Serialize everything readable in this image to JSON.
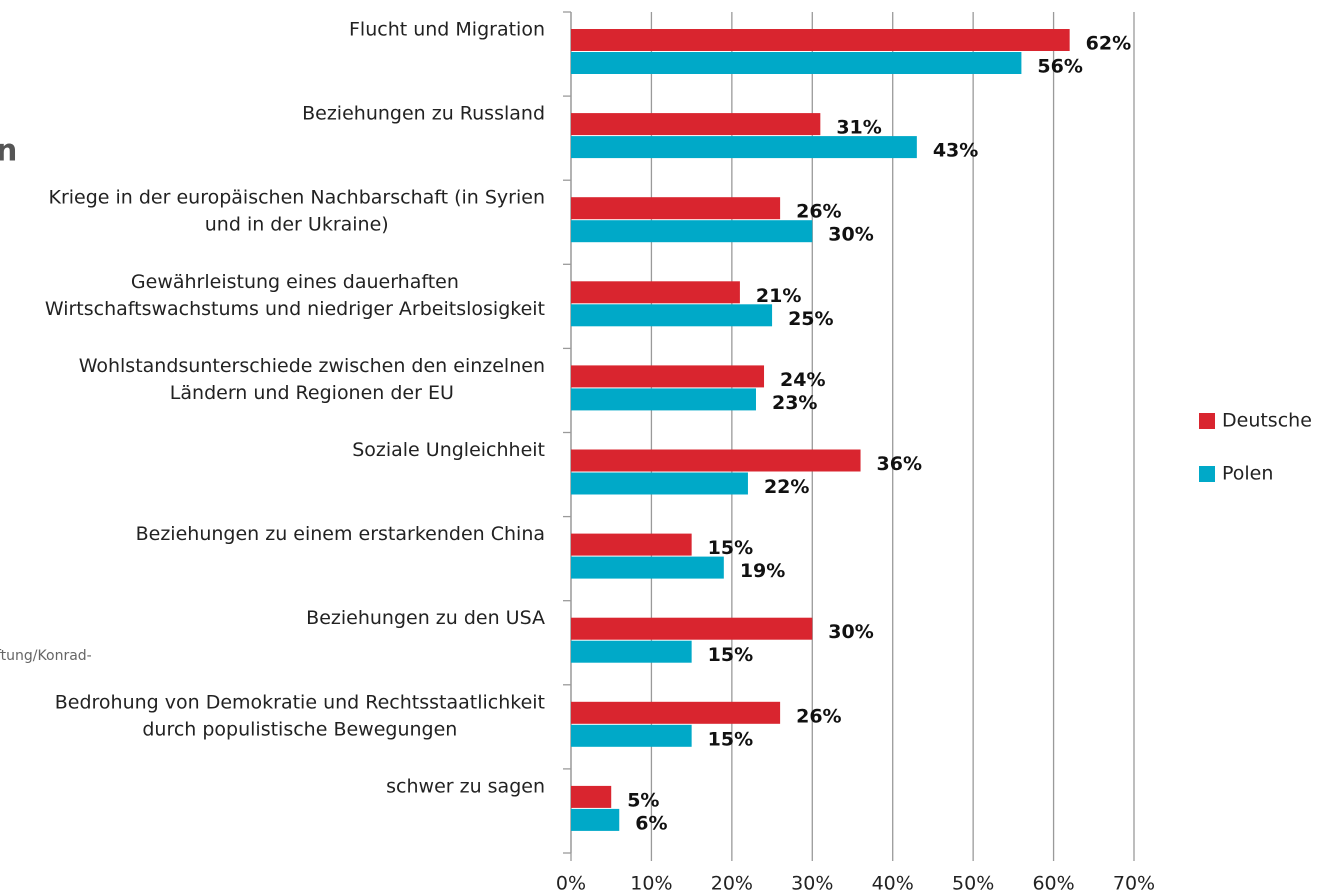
{
  "chart_data": {
    "type": "bar",
    "orientation": "horizontal",
    "title": "n",
    "source": "ftung/Konrad-",
    "categories": [
      [
        "Flucht und Migration"
      ],
      [
        "Beziehungen zu Russland"
      ],
      [
        "Kriege in der europäischen Nachbarschaft (in Syrien",
        "und in der Ukraine)"
      ],
      [
        "Gewährleistung eines dauerhaften",
        "Wirtschaftswachstums und niedriger Arbeitslosigkeit"
      ],
      [
        "Wohlstandsunterschiede zwischen den einzelnen",
        "Ländern und Regionen der EU"
      ],
      [
        "Soziale Ungleichheit"
      ],
      [
        "Beziehungen zu einem erstarkenden China"
      ],
      [
        "Beziehungen zu den USA"
      ],
      [
        "Bedrohung von Demokratie und Rechtsstaatlichkeit",
        "durch populistische Bewegungen"
      ],
      [
        "schwer zu sagen"
      ]
    ],
    "series": [
      {
        "name": "Deutsche",
        "color": "#d9252f",
        "values": [
          62,
          31,
          26,
          21,
          24,
          36,
          15,
          30,
          26,
          5
        ],
        "value_labels": [
          "62%",
          "31%",
          "26%",
          "21%",
          "24%",
          "36%",
          "15%",
          "30%",
          "26%",
          "5%"
        ]
      },
      {
        "name": "Polen",
        "color": "#00a9c8",
        "values": [
          56,
          43,
          30,
          25,
          23,
          22,
          19,
          15,
          15,
          6
        ],
        "value_labels": [
          "56%",
          "43%",
          "30%",
          "25%",
          "23%",
          "22%",
          "19%",
          "15%",
          "15%",
          "6%"
        ]
      }
    ],
    "xlim": [
      0,
      70
    ],
    "xticks": [
      {
        "value": 0,
        "label": "0%"
      },
      {
        "value": 10,
        "label": "10%"
      },
      {
        "value": 20,
        "label": "20%"
      },
      {
        "value": 30,
        "label": "30%"
      },
      {
        "value": 40,
        "label": "40%"
      },
      {
        "value": 50,
        "label": "50%"
      },
      {
        "value": 60,
        "label": "60%"
      },
      {
        "value": 70,
        "label": "70%"
      }
    ],
    "grid": true,
    "legend": "right"
  }
}
